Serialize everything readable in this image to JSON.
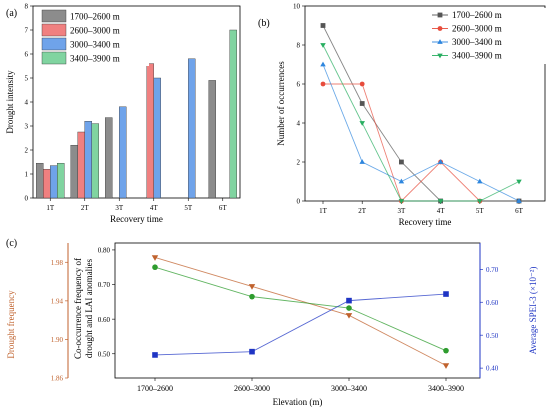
{
  "chart_data": [
    {
      "panel_label": "(a)",
      "type": "bar",
      "xlabel": "Recovery time",
      "ylabel": "Drought intensity",
      "categories": [
        "1T",
        "2T",
        "3T",
        "4T",
        "5T",
        "6T"
      ],
      "ylim": [
        0,
        8
      ],
      "yticks": [
        0,
        1,
        2,
        3,
        4,
        5,
        6,
        7,
        8
      ],
      "legend_position": "top-left",
      "series": [
        {
          "name": "1700–2600 m",
          "color": "#8c8c8c",
          "values": [
            1.45,
            2.2,
            3.35,
            null,
            null,
            4.9
          ]
        },
        {
          "name": "2600–3000 m",
          "color": "#f08080",
          "values": [
            1.2,
            2.75,
            null,
            5.6,
            null,
            null
          ]
        },
        {
          "name": "3000–3400 m",
          "color": "#6fa3ea",
          "values": [
            1.35,
            3.2,
            3.8,
            5.0,
            5.8,
            null
          ]
        },
        {
          "name": "3400–3900 m",
          "color": "#80d4a0",
          "values": [
            1.45,
            3.1,
            null,
            null,
            null,
            7.0
          ]
        }
      ]
    },
    {
      "panel_label": "(b)",
      "type": "line",
      "xlabel": "Recovery time",
      "ylabel": "Number of occurrences",
      "categories": [
        "1T",
        "2T",
        "3T",
        "4T",
        "5T",
        "6T"
      ],
      "ylim": [
        0,
        10
      ],
      "yticks": [
        0,
        2,
        4,
        6,
        8,
        10
      ],
      "legend_position": "top-right",
      "series": [
        {
          "name": "1700–2600 m",
          "color": "#555555",
          "marker": "square",
          "values": [
            9,
            5,
            2,
            0,
            null,
            0
          ]
        },
        {
          "name": "2600–3000 m",
          "color": "#e74c3c",
          "marker": "circle",
          "values": [
            6,
            6,
            0,
            2,
            0,
            null
          ]
        },
        {
          "name": "3000–3400 m",
          "color": "#2e86de",
          "marker": "triangle-up",
          "values": [
            7,
            2,
            1,
            2,
            1,
            0
          ]
        },
        {
          "name": "3400–3900 m",
          "color": "#27ae60",
          "marker": "triangle-down",
          "values": [
            8,
            4,
            0,
            0,
            0,
            1
          ]
        }
      ]
    },
    {
      "panel_label": "(c)",
      "type": "line",
      "xlabel": "Elevation (m)",
      "categories": [
        "1700–2600",
        "2600–3000",
        "3000–3400",
        "3400–3900"
      ],
      "axes": {
        "left_outer": {
          "label": "Drought frequency",
          "color": "#c0622d",
          "range": [
            1.86,
            2.0
          ],
          "ticks": [
            "1.86",
            "1.90",
            "1.94",
            "1.98"
          ]
        },
        "left_inner": {
          "label_lines": [
            "Co-occurrence frequency of",
            "drought and LAI anomalies"
          ],
          "color": "#000000",
          "range": [
            0.43,
            0.82
          ],
          "ticks": [
            "0.50",
            "0.60",
            "0.70",
            "0.80"
          ]
        },
        "right": {
          "label": "Average SPEI-3 (×10⁻²)",
          "color": "#1f35c4",
          "range": [
            0.37,
            0.78
          ],
          "ticks": [
            "0.40",
            "0.50",
            "0.60",
            "0.70"
          ]
        }
      },
      "series": [
        {
          "axis": "left_outer",
          "color": "#c0622d",
          "marker": "triangle-down",
          "values": [
            1.985,
            1.955,
            1.925,
            1.873
          ]
        },
        {
          "axis": "left_inner",
          "color": "#2e9c2e",
          "marker": "circle",
          "values": [
            0.75,
            0.665,
            0.632,
            0.509
          ]
        },
        {
          "axis": "right",
          "color": "#1f35c4",
          "marker": "square",
          "values": [
            0.44,
            0.45,
            0.605,
            0.625
          ]
        }
      ]
    }
  ]
}
